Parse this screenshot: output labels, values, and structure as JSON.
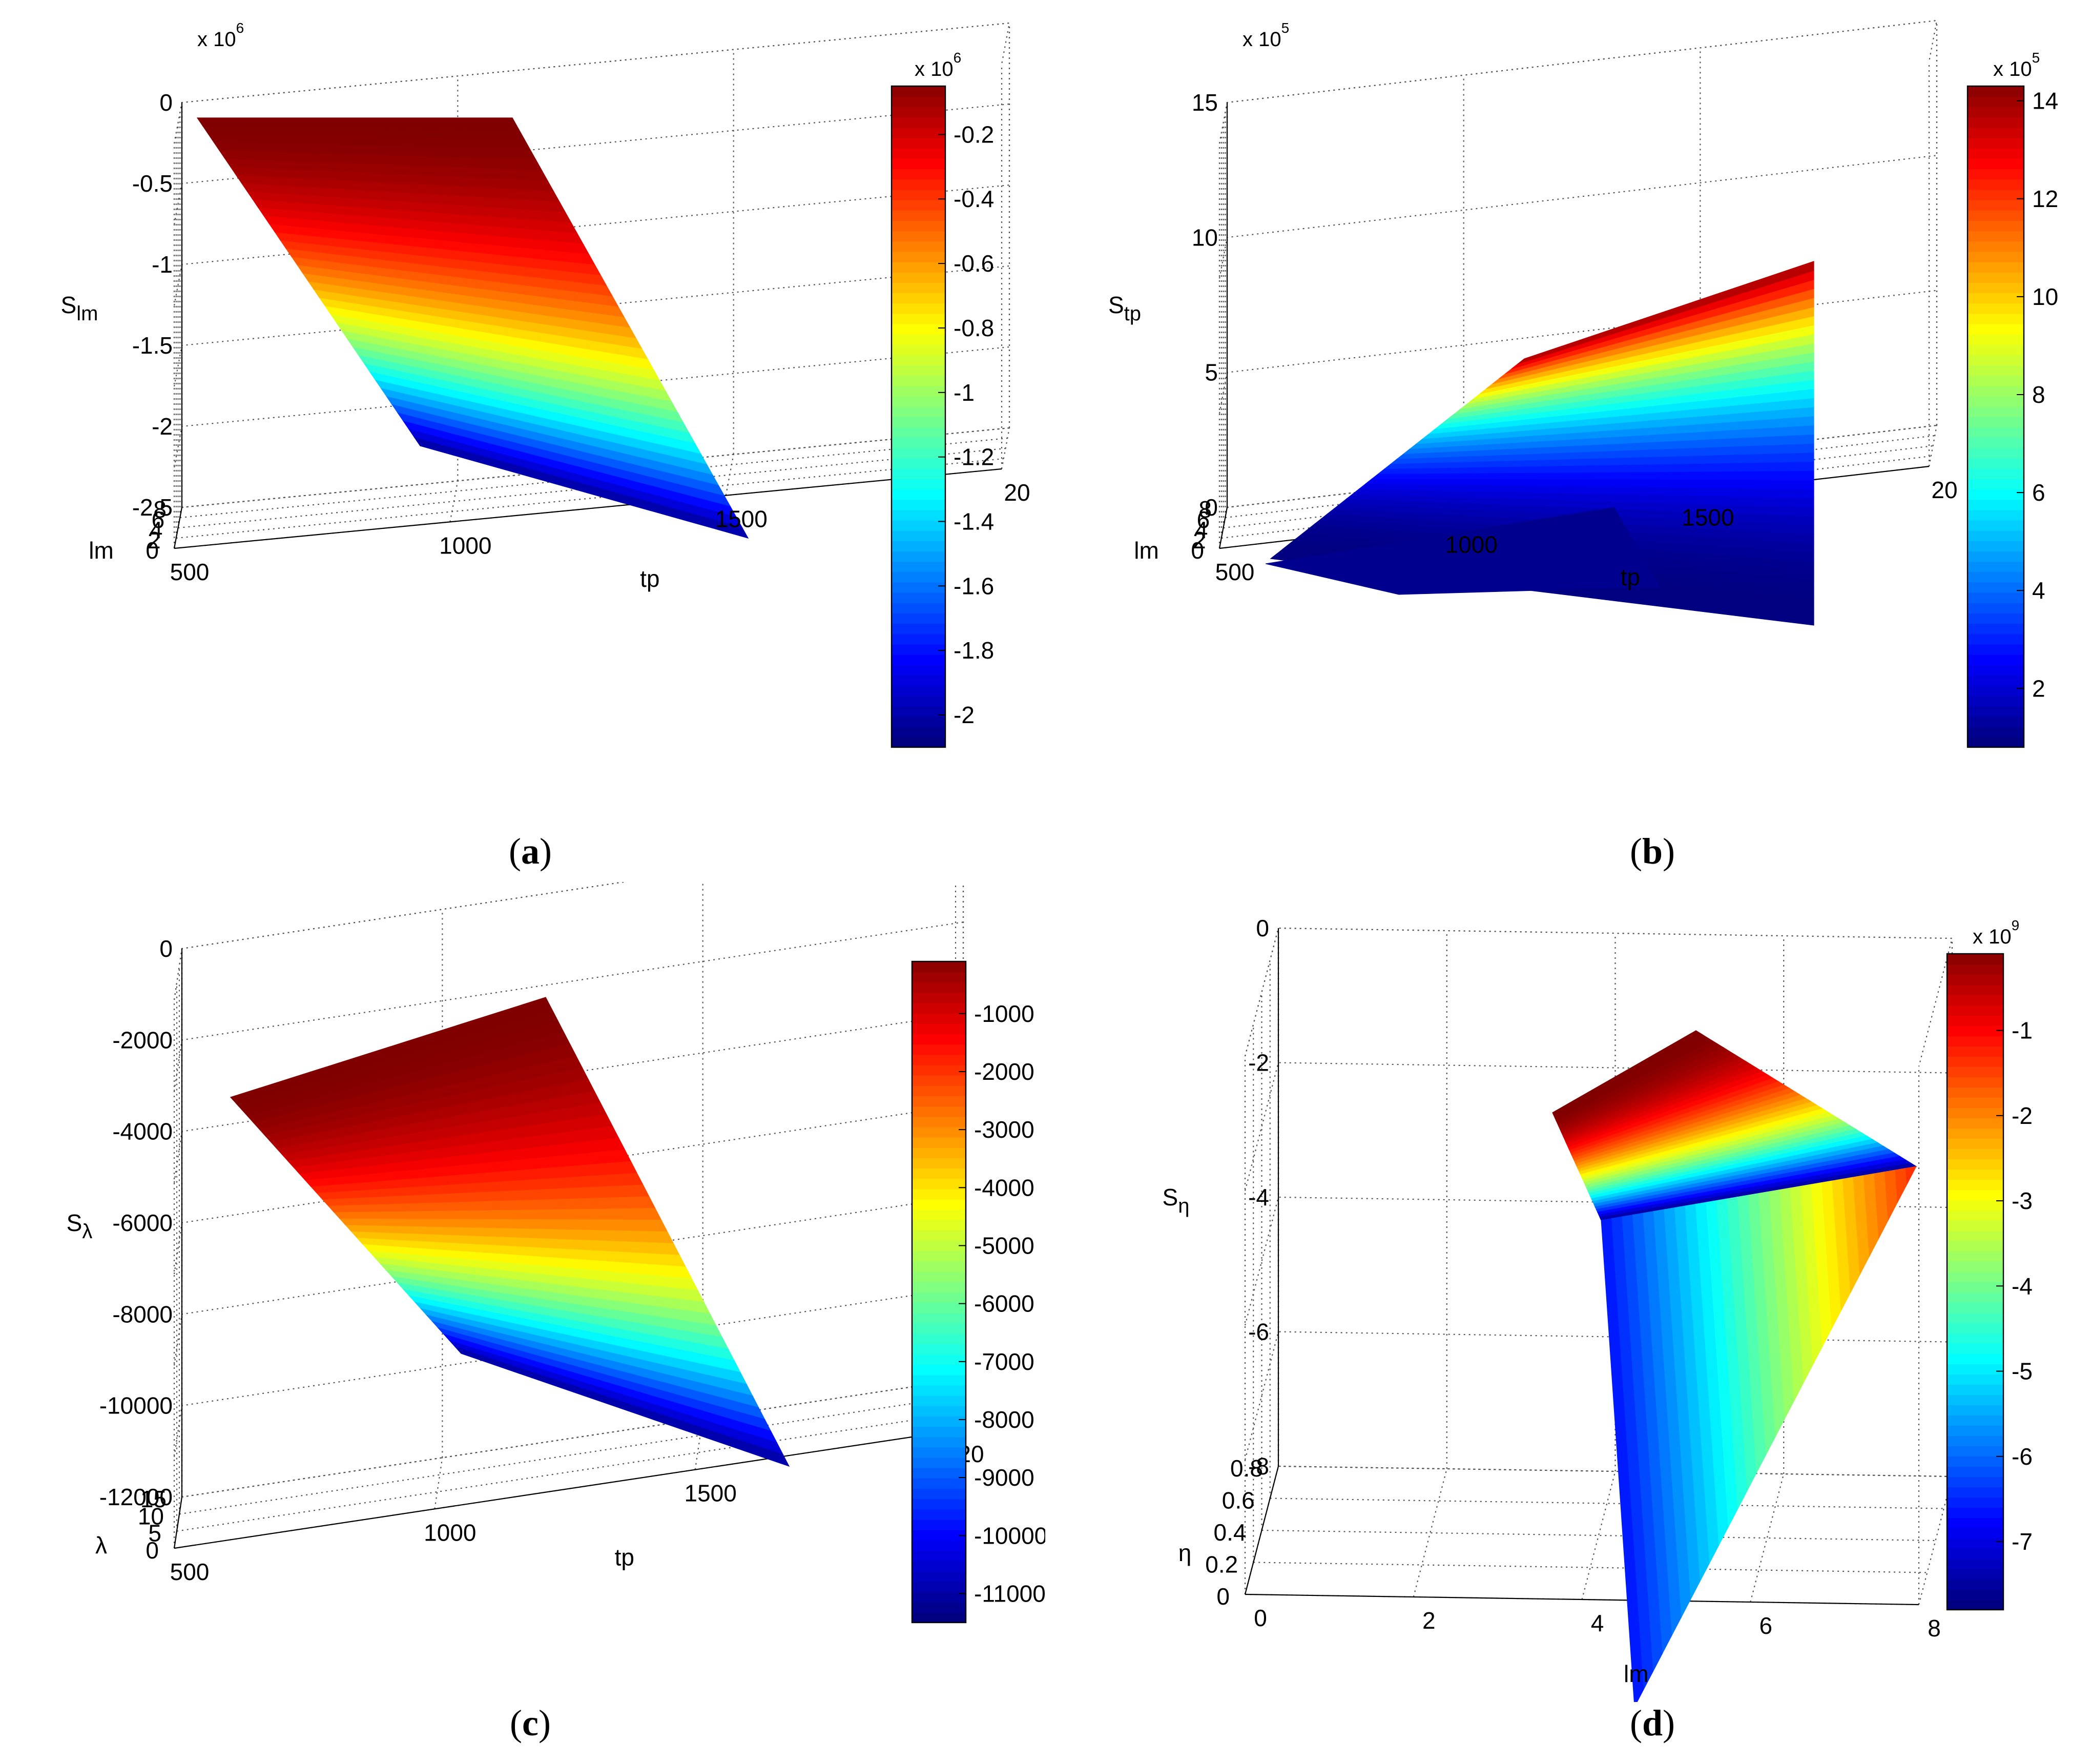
{
  "figure": {
    "panels": [
      {
        "id": "a",
        "caption": "a",
        "chart_data": {
          "type": "surface3d",
          "x_label": "tp",
          "x_ticks": [
            "500",
            "1000",
            "1500",
            "20"
          ],
          "x_range": [
            500,
            2000
          ],
          "y_label": "lm",
          "y_ticks": [
            "0",
            "2",
            "4",
            "6",
            "8"
          ],
          "y_range": [
            0,
            8
          ],
          "z_label": "S",
          "z_label_sub": "lm",
          "z_ticks": [
            "0",
            "-0.5",
            "-1",
            "-1.5",
            "-2",
            "-2.5"
          ],
          "z_range": [
            -2.5,
            0
          ],
          "z_exponent": "x 10",
          "z_exponent_power": "6",
          "colorbar_ticks": [
            "-0.2",
            "-0.4",
            "-0.6",
            "-0.8",
            "-1",
            "-1.2",
            "-1.4",
            "-1.6",
            "-1.8",
            "-2"
          ],
          "colorbar_range": [
            -2.1,
            -0.05
          ],
          "colorbar_exponent": "x 10",
          "colorbar_exponent_power": "6",
          "surface_z_min": -2.1,
          "surface_z_max": 0
        }
      },
      {
        "id": "b",
        "caption": "b",
        "chart_data": {
          "type": "surface3d",
          "x_label": "tp",
          "x_ticks": [
            "500",
            "1000",
            "1500",
            "20"
          ],
          "x_range": [
            500,
            2000
          ],
          "y_label": "lm",
          "y_ticks": [
            "0",
            "2",
            "4",
            "6",
            "8"
          ],
          "y_range": [
            0,
            8
          ],
          "z_label": "S",
          "z_label_sub": "tp",
          "z_ticks": [
            "0",
            "5",
            "10",
            "15"
          ],
          "z_range": [
            0,
            15
          ],
          "z_exponent": "x 10",
          "z_exponent_power": "5",
          "colorbar_ticks": [
            "2",
            "4",
            "6",
            "8",
            "10",
            "12",
            "14"
          ],
          "colorbar_range": [
            0.8,
            14.3
          ],
          "colorbar_exponent": "x 10",
          "colorbar_exponent_power": "5",
          "surface_z_min": 0.8,
          "surface_z_max": 14.3
        }
      },
      {
        "id": "c",
        "caption": "c",
        "chart_data": {
          "type": "surface3d",
          "x_label": "tp",
          "x_ticks": [
            "500",
            "1000",
            "1500",
            "20"
          ],
          "x_range": [
            500,
            2000
          ],
          "y_label": "λ",
          "y_ticks": [
            "0",
            "5",
            "10",
            "15"
          ],
          "y_range": [
            0,
            15
          ],
          "z_label": "S",
          "z_label_sub": "λ",
          "z_ticks": [
            "0",
            "-2000",
            "-4000",
            "-6000",
            "-8000",
            "-10000",
            "-12000"
          ],
          "z_range": [
            -12000,
            0
          ],
          "colorbar_ticks": [
            "-1000",
            "-2000",
            "-3000",
            "-4000",
            "-5000",
            "-6000",
            "-7000",
            "-8000",
            "-9000",
            "-10000",
            "-11000"
          ],
          "colorbar_range": [
            -11500,
            -100
          ],
          "surface_z_min": -11500,
          "surface_z_max": 0
        }
      },
      {
        "id": "d",
        "caption": "d",
        "chart_data": {
          "type": "surface3d",
          "x_label": "lm",
          "x_ticks": [
            "0",
            "2",
            "4",
            "6",
            "8"
          ],
          "x_range": [
            0,
            8
          ],
          "y_label": "η",
          "y_ticks": [
            "0",
            "0.2",
            "0.4",
            "0.6",
            "0.8"
          ],
          "y_range": [
            0,
            0.8
          ],
          "z_label": "S",
          "z_label_sub": "η",
          "z_ticks": [
            "0",
            "-2",
            "-4",
            "-6",
            "-8"
          ],
          "z_range": [
            -8,
            0
          ],
          "z_exponent": "x 10",
          "z_exponent_power": "9",
          "colorbar_ticks": [
            "-1",
            "-2",
            "-3",
            "-4",
            "-5",
            "-6",
            "-7"
          ],
          "colorbar_range": [
            -7.8,
            -0.1
          ],
          "colorbar_exponent": "x 10",
          "colorbar_exponent_power": "9",
          "surface_z_min": -7.8,
          "surface_z_max": 0
        }
      }
    ]
  }
}
